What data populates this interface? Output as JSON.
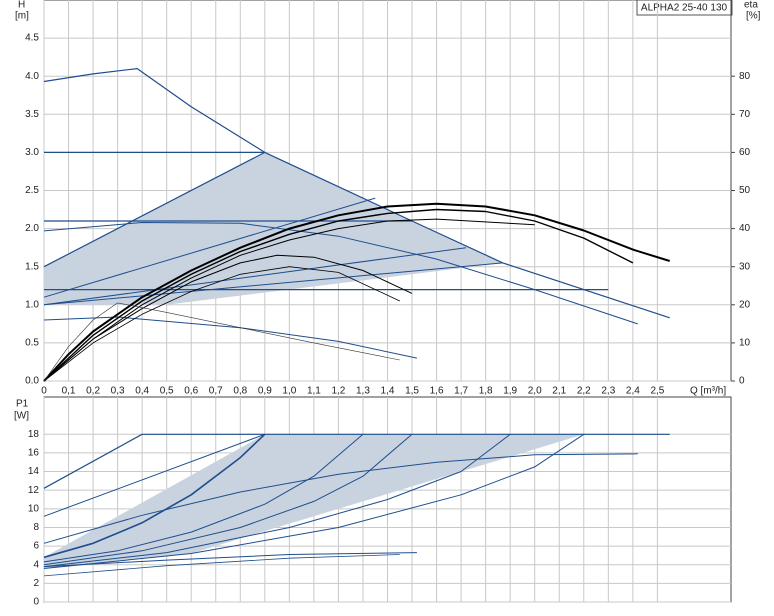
{
  "chart_data": [
    {
      "type": "line",
      "title": "ALPHA2 25-40 130",
      "ylabel": "H",
      "yunit": "[m]",
      "y2label": "eta",
      "y2unit": "[%]",
      "xlabel": "Q [m³/h]",
      "xlim": [
        0,
        2.8
      ],
      "ylim": [
        0,
        5
      ],
      "y2lim": [
        0,
        100
      ],
      "grid": true,
      "xticks": [
        0,
        {
          "value": 0.1,
          "label": "0,1"
        },
        {
          "value": 0.2,
          "label": "0,2"
        },
        {
          "value": 0.3,
          "label": "0,3"
        },
        {
          "value": 0.4,
          "label": "0,4"
        },
        {
          "value": 0.5,
          "label": "0,5"
        },
        {
          "value": 0.6,
          "label": "0,6"
        },
        {
          "value": 0.7,
          "label": "0,7"
        },
        {
          "value": 0.8,
          "label": "0,8"
        },
        {
          "value": 0.9,
          "label": "0,9"
        },
        {
          "value": 1.0,
          "label": "1,0"
        },
        {
          "value": 1.1,
          "label": "1,1"
        },
        {
          "value": 1.2,
          "label": "1,2"
        },
        {
          "value": 1.3,
          "label": "1,3"
        },
        {
          "value": 1.4,
          "label": "1,4"
        },
        {
          "value": 1.5,
          "label": "1,5"
        },
        {
          "value": 1.6,
          "label": "1,6"
        },
        {
          "value": 1.7,
          "label": "1,7"
        },
        {
          "value": 1.8,
          "label": "1,8"
        },
        {
          "value": 1.9,
          "label": "1,9"
        },
        {
          "value": 2.0,
          "label": "2,0"
        },
        {
          "value": 2.1,
          "label": "2,1"
        },
        {
          "value": 2.2,
          "label": "2,2"
        },
        {
          "value": 2.3,
          "label": "2,3"
        },
        {
          "value": 2.4,
          "label": "2,4"
        },
        {
          "value": 2.5,
          "label": "2,5"
        }
      ],
      "yticks": [
        {
          "value": 0,
          "label": "0.0"
        },
        0.5,
        {
          "value": 1,
          "label": "1.0"
        },
        1.5,
        {
          "value": 2,
          "label": "2.0"
        },
        2.5,
        {
          "value": 3,
          "label": "3.0"
        },
        3.5,
        {
          "value": 4,
          "label": "4.0"
        },
        4.5
      ],
      "y2ticks": [
        0,
        10,
        20,
        30,
        40,
        50,
        60,
        70,
        80
      ],
      "series": [
        {
          "kind": "area",
          "color": "#c9d3e0",
          "x": [
            0,
            0.9,
            1.2,
            1.5,
            1.87,
            0.5,
            0
          ],
          "values": [
            1.5,
            3.0,
            2.55,
            2.1,
            1.55,
            1.0,
            1.0
          ]
        },
        {
          "color": "#1f4e8c",
          "width": 1.2,
          "x": [
            0,
            0.2,
            0.38,
            0.6,
            0.9,
            1.2,
            1.5,
            1.87,
            2.2,
            2.55
          ],
          "values": [
            3.93,
            4.03,
            4.1,
            3.6,
            3.0,
            2.55,
            2.1,
            1.55,
            1.2,
            0.83
          ]
        },
        {
          "color": "#1f4e8c",
          "width": 1.2,
          "x": [
            0,
            0.9
          ],
          "values": [
            3.0,
            3.0
          ]
        },
        {
          "color": "#1f4e8c",
          "width": 1.2,
          "x": [
            0,
            0.9
          ],
          "values": [
            1.5,
            3.0
          ]
        },
        {
          "color": "#1f4e8c",
          "width": 1.2,
          "x": [
            0,
            1.5
          ],
          "values": [
            2.1,
            2.1
          ]
        },
        {
          "color": "#1f4e8c",
          "width": 1.2,
          "x": [
            0,
            2.3
          ],
          "values": [
            1.2,
            1.2
          ]
        },
        {
          "color": "#1f4e8c",
          "width": 1,
          "x": [
            0,
            0.4,
            0.8,
            1.2,
            1.6,
            2.0,
            2.42
          ],
          "values": [
            1.97,
            2.08,
            2.07,
            1.9,
            1.6,
            1.2,
            0.75
          ]
        },
        {
          "color": "#1f4e8c",
          "width": 1,
          "x": [
            0,
            0.3,
            0.8,
            1.2,
            1.52
          ],
          "values": [
            0.8,
            0.84,
            0.7,
            0.52,
            0.3
          ]
        },
        {
          "color": "#1f4e8c",
          "width": 1,
          "x": [
            0,
            1.35
          ],
          "values": [
            1.1,
            2.4
          ]
        },
        {
          "color": "#1f4e8c",
          "width": 1,
          "x": [
            0,
            1.72
          ],
          "values": [
            1.0,
            1.75
          ]
        },
        {
          "color": "#1f4e8c",
          "width": 1,
          "x": [
            0,
            1.87
          ],
          "values": [
            1.0,
            1.55
          ]
        },
        {
          "color": "#000000",
          "width": 2,
          "axis": "y2",
          "x": [
            0,
            0.1,
            0.2,
            0.4,
            0.6,
            0.8,
            1.0,
            1.2,
            1.4,
            1.6,
            1.8,
            2.0,
            2.2,
            2.4,
            2.55
          ],
          "values": [
            0,
            7,
            13,
            22,
            29,
            35,
            40,
            43.5,
            45.8,
            46.5,
            45.8,
            43.5,
            39.5,
            34.5,
            31.5
          ]
        },
        {
          "color": "#000000",
          "width": 1.4,
          "axis": "y2",
          "x": [
            0,
            0.2,
            0.4,
            0.6,
            0.8,
            1.0,
            1.2,
            1.4,
            1.6,
            1.8,
            2.0,
            2.2,
            2.4
          ],
          "values": [
            0,
            12,
            21,
            28,
            34,
            38.5,
            42,
            44,
            45,
            44.5,
            42,
            37.5,
            31
          ]
        },
        {
          "color": "#000000",
          "width": 1,
          "axis": "y2",
          "x": [
            0,
            0.2,
            0.4,
            0.6,
            0.8,
            1.0,
            1.2,
            1.4,
            1.6,
            2.0
          ],
          "values": [
            0,
            11,
            20,
            27,
            33,
            37,
            40,
            42,
            42.5,
            41
          ]
        },
        {
          "color": "#000000",
          "width": 1,
          "axis": "y2",
          "x": [
            0,
            0.2,
            0.4,
            0.6,
            0.8,
            0.95,
            1.1,
            1.3,
            1.5
          ],
          "values": [
            0,
            11,
            19,
            26,
            31,
            33,
            32.5,
            29,
            23
          ]
        },
        {
          "color": "#000000",
          "width": 0.8,
          "axis": "y2",
          "x": [
            0,
            0.2,
            0.4,
            0.6,
            0.8,
            1.0,
            1.2,
            1.45
          ],
          "values": [
            0,
            10,
            17.5,
            23.5,
            28,
            30,
            28.5,
            21
          ]
        },
        {
          "color": "#333333",
          "width": 0.6,
          "axis": "y2",
          "x": [
            0,
            0.1,
            0.2,
            0.3,
            0.5,
            0.8,
            1.1,
            1.45
          ],
          "values": [
            0,
            9,
            16,
            20.5,
            18,
            14,
            10,
            5.5
          ]
        }
      ]
    },
    {
      "type": "line",
      "ylabel": "P1",
      "yunit": "[W]",
      "xlim": [
        0,
        2.8
      ],
      "ylim": [
        0,
        22
      ],
      "grid": true,
      "xticks": [
        0,
        0.1,
        0.2,
        0.3,
        0.4,
        0.5,
        0.6,
        0.7,
        0.8,
        0.9,
        1.0,
        1.1,
        1.2,
        1.3,
        1.4,
        1.5,
        1.6,
        1.7,
        1.8,
        1.9,
        2.0,
        2.1,
        2.2,
        2.3,
        2.4,
        2.5
      ],
      "yticks": [
        0,
        2,
        4,
        6,
        8,
        10,
        12,
        14,
        16,
        18
      ],
      "series": [
        {
          "kind": "area",
          "color": "#c9d3e0",
          "x": [
            0,
            0.9,
            2.2,
            0.6,
            0
          ],
          "values": [
            4.8,
            18,
            18,
            5.2,
            3.6
          ]
        },
        {
          "color": "#1f4e8c",
          "width": 1.2,
          "x": [
            0,
            0.4,
            2.55
          ],
          "values": [
            12.2,
            18,
            18
          ]
        },
        {
          "color": "#1f4e8c",
          "width": 1,
          "x": [
            0,
            0.9
          ],
          "values": [
            9.2,
            18
          ]
        },
        {
          "color": "#1f4e8c",
          "width": 1.6,
          "x": [
            0,
            0.2,
            0.4,
            0.6,
            0.8,
            0.9
          ],
          "values": [
            4.8,
            6.3,
            8.5,
            11.5,
            15.5,
            18
          ]
        },
        {
          "color": "#1f4e8c",
          "width": 1,
          "x": [
            0,
            0.3,
            0.6,
            0.9,
            1.1,
            1.3
          ],
          "values": [
            4.3,
            5.5,
            7.5,
            10.5,
            13.5,
            18
          ]
        },
        {
          "color": "#1f4e8c",
          "width": 1,
          "x": [
            0,
            0.4,
            0.8,
            1.1,
            1.3,
            1.5
          ],
          "values": [
            4.0,
            5.5,
            8,
            10.8,
            13.5,
            18
          ]
        },
        {
          "color": "#1f4e8c",
          "width": 1,
          "x": [
            0,
            0.5,
            1.0,
            1.4,
            1.7,
            1.9
          ],
          "values": [
            3.8,
            5.3,
            8,
            11,
            14,
            18
          ]
        },
        {
          "color": "#1f4e8c",
          "width": 1,
          "x": [
            0,
            0.6,
            1.2,
            1.7,
            2.0,
            2.2
          ],
          "values": [
            3.6,
            5.2,
            8,
            11.5,
            14.5,
            18
          ]
        },
        {
          "color": "#1f4e8c",
          "width": 1,
          "x": [
            0,
            0.4,
            0.8,
            1.2,
            1.6,
            2.0,
            2.42
          ],
          "values": [
            6.3,
            9.3,
            11.8,
            13.7,
            15.0,
            15.8,
            15.9
          ]
        },
        {
          "color": "#1f4e8c",
          "width": 1,
          "x": [
            0,
            0.5,
            1.0,
            1.52
          ],
          "values": [
            3.8,
            4.5,
            5.1,
            5.3
          ]
        },
        {
          "color": "#1f4e8c",
          "width": 0.8,
          "x": [
            0,
            0.5,
            1.0,
            1.45
          ],
          "values": [
            2.8,
            3.9,
            4.7,
            5.1
          ]
        }
      ]
    }
  ]
}
